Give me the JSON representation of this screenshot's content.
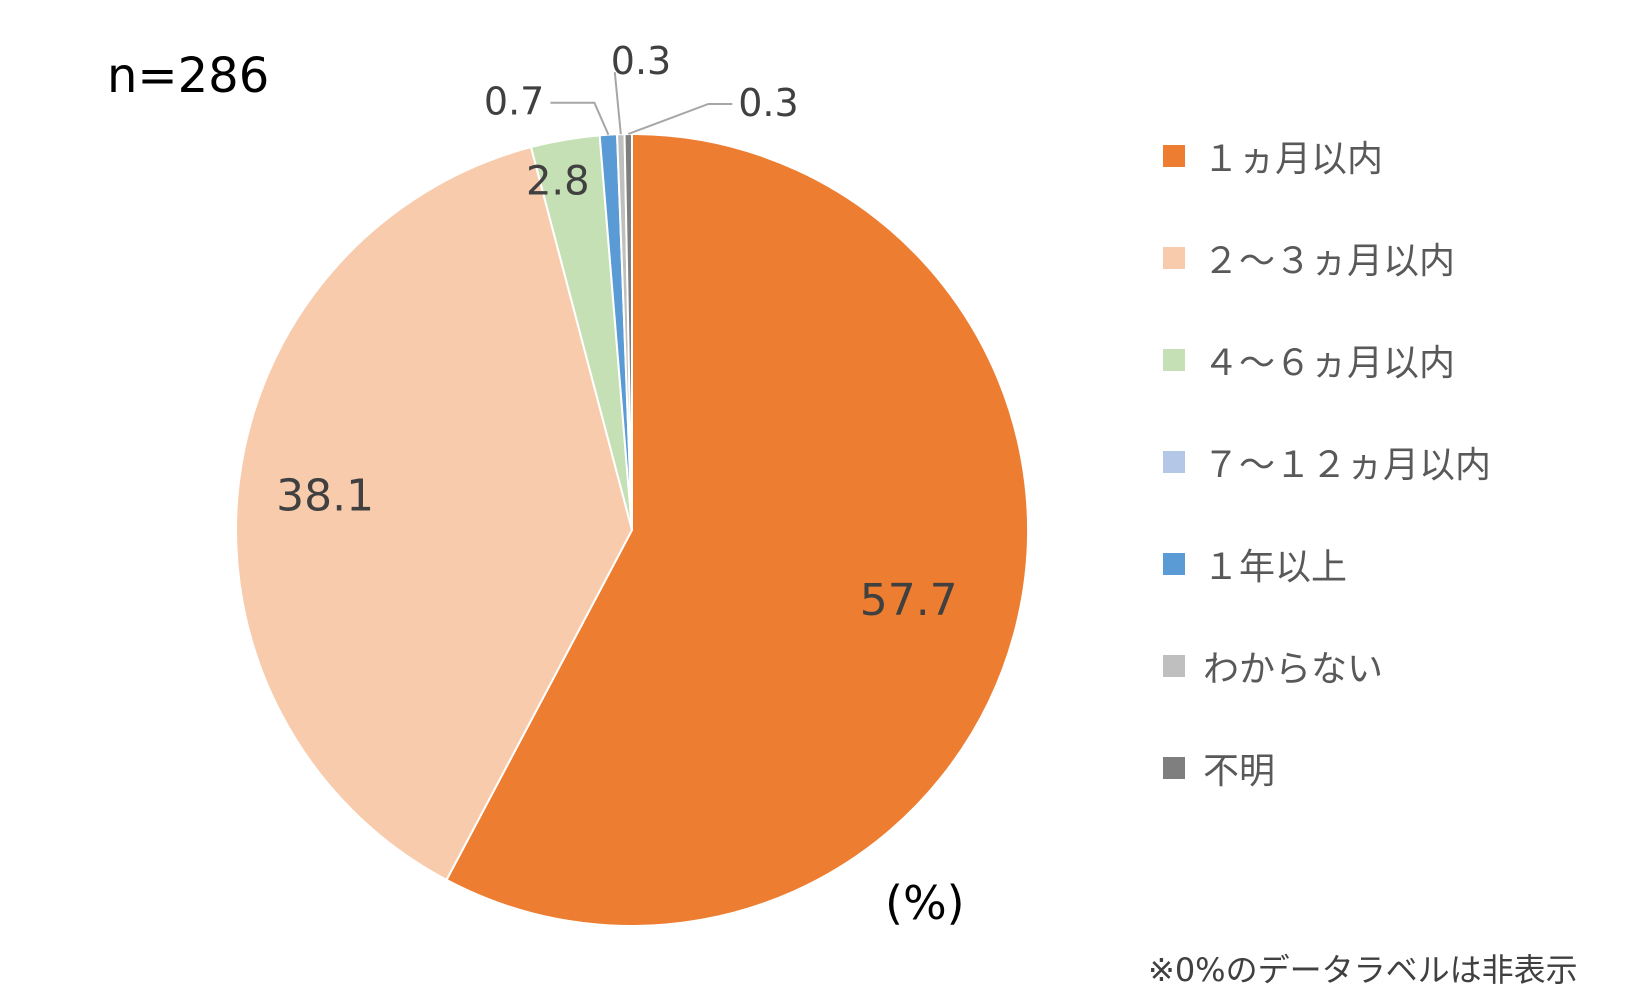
{
  "header": {
    "sample_size": "n=286"
  },
  "chart_data": {
    "type": "pie",
    "categories": [
      "１ヵ月以内",
      "２～３ヵ月以内",
      "４～６ヵ月以内",
      "７～１２ヵ月以内",
      "１年以上",
      "わからない",
      "不明"
    ],
    "values": [
      57.7,
      38.1,
      2.8,
      0,
      0.7,
      0.3,
      0.3
    ],
    "labels": [
      "57.7",
      "38.1",
      "2.8",
      "",
      "0.7",
      "0.3",
      "0.3"
    ],
    "colors": [
      "#ED7D31",
      "#F8CBAD",
      "#C5E0B4",
      "#B4C7E7",
      "#5B9BD5",
      "#BFBFBF",
      "#7F7F7F"
    ],
    "start_angle": "12 o'clock",
    "direction": "clockwise",
    "legend_position": "right",
    "unit_label": "(%)"
  },
  "footnote": "※0%のデータラベルは非表示"
}
